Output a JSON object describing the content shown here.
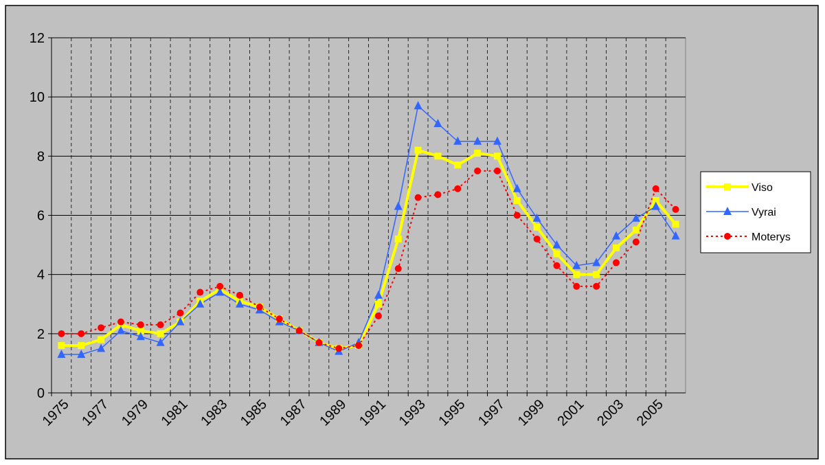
{
  "chart_data": {
    "type": "line",
    "categories": [
      "1975",
      null,
      "1977",
      null,
      "1979",
      null,
      "1981",
      null,
      "1983",
      null,
      "1985",
      null,
      "1987",
      null,
      "1989",
      null,
      "1991",
      null,
      "1993",
      null,
      "1995",
      null,
      "1997",
      null,
      "1999",
      null,
      "2001",
      null,
      "2003",
      null,
      "2005",
      null
    ],
    "series": [
      {
        "name": "Viso",
        "color": "#ffff00",
        "marker": "square",
        "line_style": "solid",
        "values": [
          1.6,
          1.6,
          1.8,
          2.3,
          2.1,
          2.0,
          2.4,
          3.1,
          3.5,
          3.1,
          2.9,
          2.5,
          2.1,
          1.7,
          1.5,
          1.6,
          3.0,
          5.2,
          8.2,
          8.0,
          7.7,
          8.1,
          8.0,
          6.5,
          5.6,
          4.7,
          4.0,
          4.0,
          4.9,
          5.5,
          6.5,
          5.7
        ]
      },
      {
        "name": "Vyrai",
        "color": "#3366ff",
        "marker": "triangle",
        "line_style": "solid",
        "values": [
          1.3,
          1.3,
          1.5,
          2.1,
          1.9,
          1.7,
          2.4,
          3.0,
          3.4,
          3.0,
          2.8,
          2.4,
          2.1,
          1.7,
          1.4,
          1.7,
          3.3,
          6.3,
          9.7,
          9.1,
          8.5,
          8.5,
          8.5,
          6.9,
          5.9,
          5.0,
          4.3,
          4.4,
          5.3,
          5.9,
          6.3,
          5.3
        ]
      },
      {
        "name": "Moterys",
        "color": "#ff0000",
        "marker": "circle",
        "line_style": "dotted",
        "values": [
          2.0,
          2.0,
          2.2,
          2.4,
          2.3,
          2.3,
          2.7,
          3.4,
          3.6,
          3.3,
          2.9,
          2.5,
          2.1,
          1.7,
          1.5,
          1.6,
          2.6,
          4.2,
          6.6,
          6.7,
          6.9,
          7.5,
          7.5,
          6.0,
          5.2,
          4.3,
          3.6,
          3.6,
          4.4,
          5.1,
          6.9,
          6.2
        ]
      }
    ],
    "ylim": [
      0,
      12
    ],
    "yticks": [
      0,
      2,
      4,
      6,
      8,
      10,
      12
    ],
    "grid": true,
    "legend": "right"
  }
}
